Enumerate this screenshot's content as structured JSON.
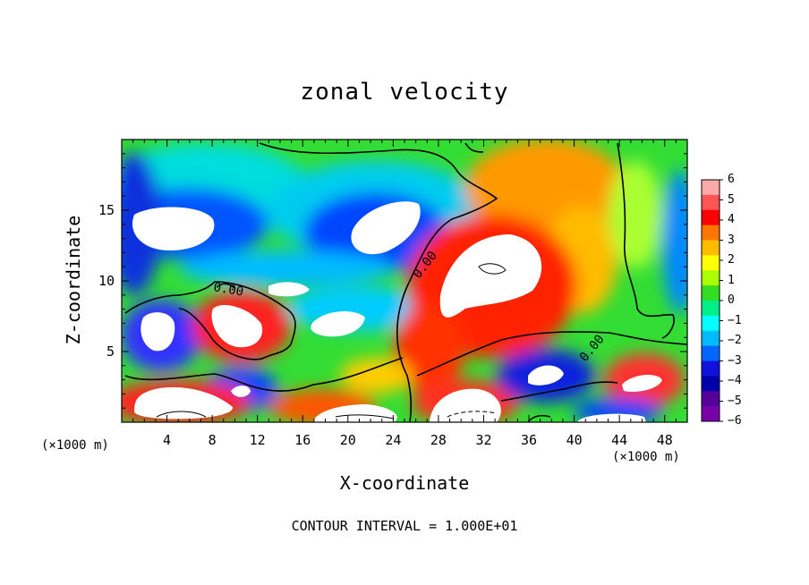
{
  "chart_data": {
    "type": "heatmap",
    "title": "zonal velocity",
    "xlabel": "X-coordinate",
    "ylabel": "Z-coordinate",
    "x_unit": "(×1000 m)",
    "xlim": [
      0,
      50
    ],
    "ylim": [
      0,
      20
    ],
    "x_ticks": [
      4,
      8,
      12,
      16,
      20,
      24,
      28,
      32,
      36,
      40,
      44,
      48
    ],
    "y_ticks": [
      5,
      10,
      15
    ],
    "colorbar": {
      "ticks": [
        6,
        5,
        4,
        3,
        2,
        1,
        0,
        -1,
        -2,
        -3,
        -4,
        -5,
        -6
      ],
      "colors": [
        "#ffaaaa",
        "#ff5555",
        "#ff0000",
        "#ff7700",
        "#ffbb00",
        "#ffff00",
        "#aaff00",
        "#33dd22",
        "#00ee88",
        "#00ffff",
        "#00bbff",
        "#0066ff",
        "#1111dd",
        "#0000aa",
        "#550099",
        "#7700aa"
      ]
    },
    "contour_label": "0.00",
    "contour_interval": "CONTOUR INTERVAL = 1.000E+01"
  }
}
